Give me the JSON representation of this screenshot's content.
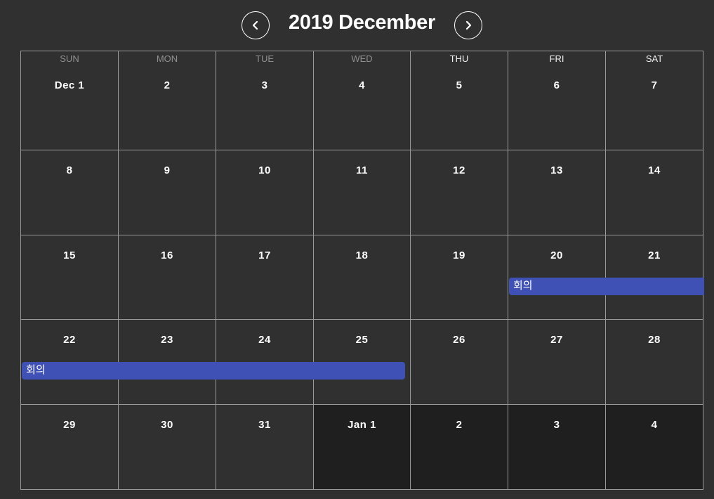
{
  "header": {
    "title": "2019 December",
    "prev_icon": "chevron-left-icon",
    "next_icon": "chevron-right-icon"
  },
  "weekdays": [
    "SUN",
    "MON",
    "TUE",
    "WED",
    "THU",
    "FRI",
    "SAT"
  ],
  "weeks": [
    [
      "Dec 1",
      "2",
      "3",
      "4",
      "5",
      "6",
      "7"
    ],
    [
      "8",
      "9",
      "10",
      "11",
      "12",
      "13",
      "14"
    ],
    [
      "15",
      "16",
      "17",
      "18",
      "19",
      "20",
      "21"
    ],
    [
      "22",
      "23",
      "24",
      "25",
      "26",
      "27",
      "28"
    ],
    [
      "29",
      "30",
      "31",
      "Jan 1",
      "2",
      "3",
      "4"
    ]
  ],
  "events": [
    {
      "title": "회의",
      "week": 2,
      "start_day": 5,
      "end_day": 6
    },
    {
      "title": "회의",
      "week": 3,
      "start_day": 0,
      "end_day": 3
    }
  ],
  "colors": {
    "background": "#303030",
    "next_month_cell": "#1f1f1f",
    "event": "#3f51b5",
    "grid_line": "#9a9a9a"
  }
}
